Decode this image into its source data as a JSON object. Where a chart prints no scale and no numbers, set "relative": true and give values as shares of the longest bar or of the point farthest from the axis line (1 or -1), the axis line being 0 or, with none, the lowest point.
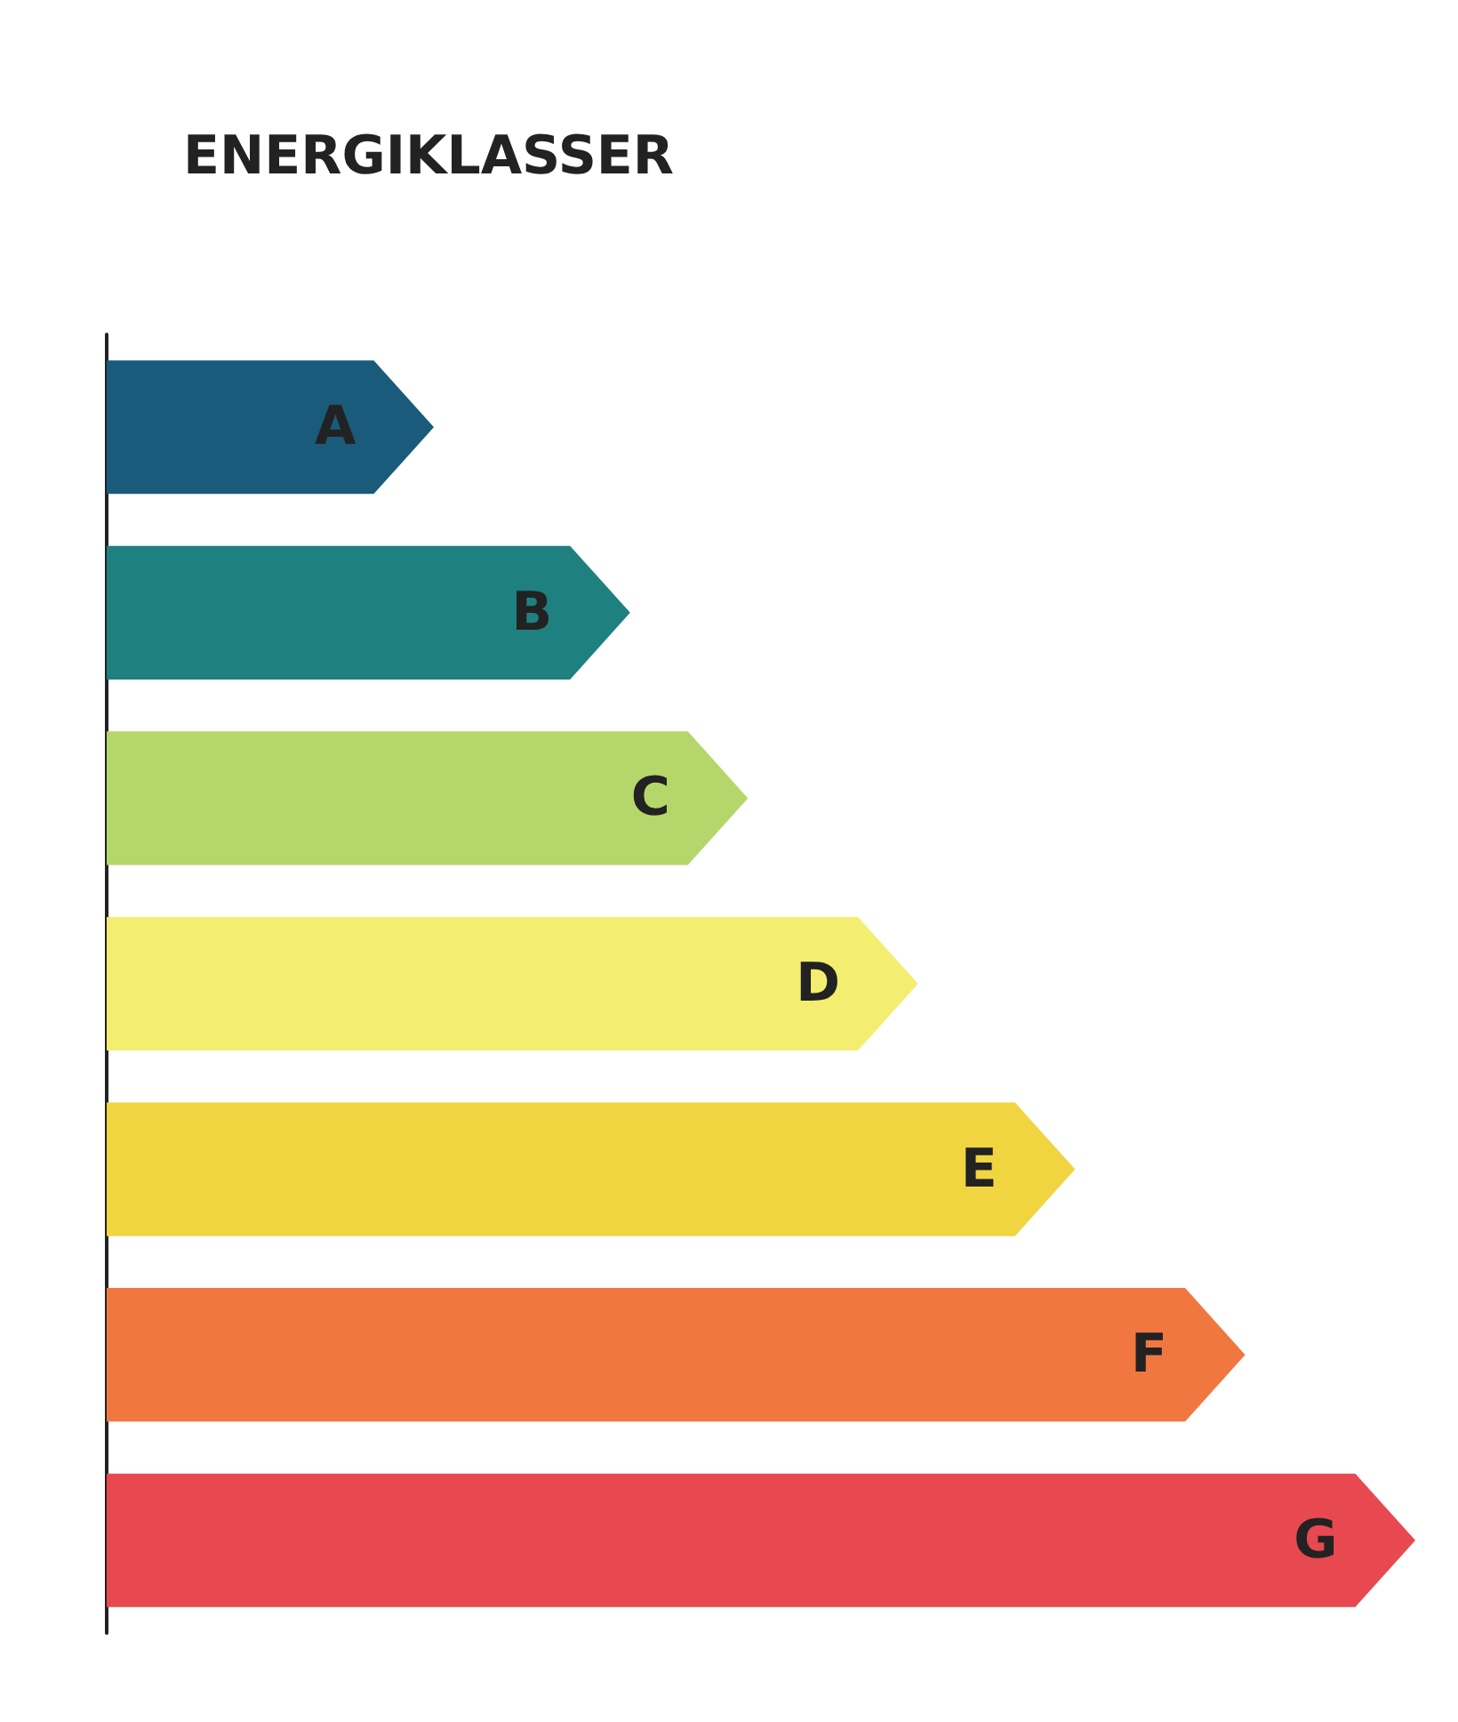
{
  "chart_data": {
    "type": "bar",
    "orientation": "horizontal",
    "relative": true,
    "title": "ENERGIKLASSER",
    "categories": [
      "A",
      "B",
      "C",
      "D",
      "E",
      "F",
      "G"
    ],
    "values": [
      0.25,
      0.4,
      0.49,
      0.62,
      0.74,
      0.87,
      1
    ],
    "colors": [
      "#1a5a7a",
      "#1f8080",
      "#b5d66a",
      "#f3ee70",
      "#f0d540",
      "#f07840",
      "#e84850"
    ]
  }
}
